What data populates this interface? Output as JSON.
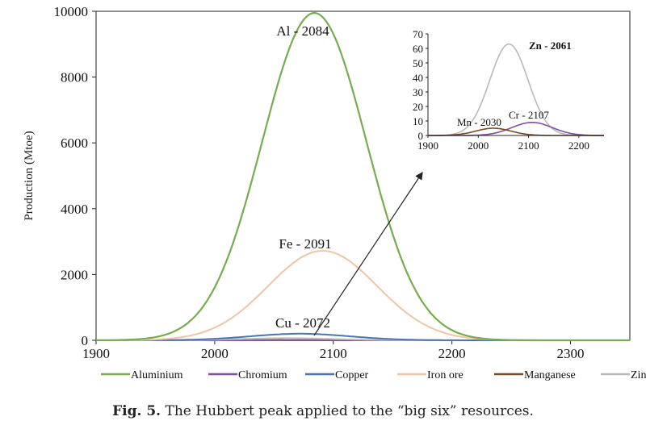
{
  "caption": {
    "label": "Fig. 5.",
    "text": "The Hubbert peak applied to the “big six” resources."
  },
  "chart_data": [
    {
      "type": "line",
      "ylabel": "Production (Mtoe)",
      "xlim": [
        1900,
        2350
      ],
      "ylim": [
        0,
        10000
      ],
      "x_ticks": [
        1900,
        2000,
        2100,
        2200,
        2300
      ],
      "y_ticks": [
        0,
        2000,
        4000,
        6000,
        8000,
        10000
      ],
      "legend_position": "bottom",
      "series": [
        {
          "name": "Aluminium",
          "color": "#77ac4f",
          "peak_year": 2084,
          "peak_value": 9950,
          "width_years": 44
        },
        {
          "name": "Chromium",
          "color": "#7f4fa2",
          "peak_year": 2107,
          "peak_value": 9,
          "width_years": 40
        },
        {
          "name": "Copper",
          "color": "#4a74b5",
          "peak_year": 2072,
          "peak_value": 200,
          "width_years": 42
        },
        {
          "name": "Iron ore",
          "color": "#f2c4a2",
          "peak_year": 2091,
          "peak_value": 2720,
          "width_years": 46
        },
        {
          "name": "Manganese",
          "color": "#7a4a22",
          "peak_year": 2030,
          "peak_value": 5,
          "width_years": 35
        },
        {
          "name": "Zinc",
          "color": "#b9b9b9",
          "peak_year": 2061,
          "peak_value": 63,
          "width_years": 38
        }
      ],
      "annotations": [
        "Al - 2084",
        "Fe - 2091",
        "Cu - 2072"
      ]
    },
    {
      "type": "line",
      "xlim": [
        1900,
        2250
      ],
      "ylim": [
        0,
        70
      ],
      "x_ticks": [
        1900,
        2000,
        2100,
        2200
      ],
      "y_ticks": [
        0,
        10,
        20,
        30,
        40,
        50,
        60,
        70
      ],
      "series_shown": [
        "Zinc",
        "Chromium",
        "Manganese"
      ],
      "annotations": [
        "Zn - 2061",
        "Cr - 2107",
        "Mn - 2030"
      ]
    }
  ]
}
